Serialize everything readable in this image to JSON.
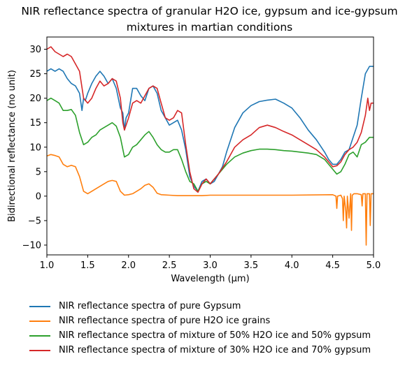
{
  "chart_data": {
    "type": "line",
    "title_line1": "NIR reflectance spectra of granular H2O ice, gypsum and ice-gypsum",
    "title_line2": "mixtures in martian conditions",
    "xlabel": "Wavelength (μm)",
    "ylabel": "Bidirectional reflectance (no unit)",
    "xlim": [
      1.0,
      5.0
    ],
    "ylim": [
      -12,
      32.5
    ],
    "xticks": [
      "1.0",
      "1.5",
      "2.0",
      "2.5",
      "3.0",
      "3.5",
      "4.0",
      "4.5",
      "5.0"
    ],
    "yticks": [
      "−10",
      "−5",
      "0",
      "5",
      "10",
      "15",
      "20",
      "25",
      "30"
    ],
    "grid": false,
    "legend_position": "below",
    "series": [
      {
        "name": "NIR reflectance spectra of pure Gypsum",
        "color": "#1f77b4",
        "x": [
          1.0,
          1.05,
          1.1,
          1.15,
          1.2,
          1.25,
          1.3,
          1.35,
          1.4,
          1.43,
          1.45,
          1.47,
          1.5,
          1.55,
          1.6,
          1.65,
          1.7,
          1.75,
          1.8,
          1.85,
          1.9,
          1.93,
          1.95,
          1.97,
          2.0,
          2.05,
          2.1,
          2.15,
          2.2,
          2.25,
          2.3,
          2.35,
          2.4,
          2.45,
          2.5,
          2.55,
          2.6,
          2.65,
          2.7,
          2.75,
          2.8,
          2.85,
          2.9,
          2.95,
          3.0,
          3.05,
          3.1,
          3.15,
          3.2,
          3.3,
          3.4,
          3.5,
          3.6,
          3.7,
          3.8,
          3.9,
          4.0,
          4.1,
          4.2,
          4.3,
          4.4,
          4.45,
          4.5,
          4.55,
          4.6,
          4.65,
          4.7,
          4.75,
          4.8,
          4.85,
          4.9,
          4.95,
          5.0
        ],
        "values": [
          25.5,
          26.0,
          25.5,
          26.0,
          25.5,
          24.0,
          23.0,
          22.5,
          21.0,
          17.5,
          20.0,
          19.5,
          21.0,
          23.0,
          24.5,
          25.5,
          24.5,
          23.0,
          24.0,
          22.0,
          18.0,
          17.0,
          13.5,
          16.0,
          17.0,
          22.0,
          22.0,
          20.5,
          19.5,
          22.0,
          22.5,
          21.0,
          17.5,
          16.0,
          14.5,
          15.0,
          15.5,
          13.5,
          9.5,
          4.0,
          2.0,
          1.0,
          3.0,
          3.5,
          2.5,
          3.0,
          4.5,
          6.0,
          9.0,
          14.0,
          17.0,
          18.5,
          19.3,
          19.6,
          19.8,
          19.0,
          18.0,
          16.0,
          13.5,
          11.5,
          9.0,
          7.5,
          6.5,
          6.5,
          7.5,
          9.0,
          9.5,
          12.0,
          14.5,
          20.0,
          25.0,
          26.5,
          26.5
        ]
      },
      {
        "name": "NIR reflectance spectra of pure H2O ice grains",
        "color": "#ff7f0e",
        "x": [
          1.0,
          1.05,
          1.1,
          1.15,
          1.2,
          1.25,
          1.3,
          1.35,
          1.4,
          1.45,
          1.5,
          1.55,
          1.6,
          1.65,
          1.7,
          1.75,
          1.8,
          1.85,
          1.9,
          1.95,
          2.0,
          2.05,
          2.1,
          2.15,
          2.2,
          2.25,
          2.3,
          2.35,
          2.4,
          2.5,
          2.6,
          2.7,
          2.8,
          2.9,
          3.0,
          3.5,
          4.0,
          4.5,
          4.54,
          4.55,
          4.56,
          4.6,
          4.62,
          4.63,
          4.64,
          4.66,
          4.67,
          4.68,
          4.7,
          4.72,
          4.73,
          4.74,
          4.76,
          4.8,
          4.85,
          4.86,
          4.87,
          4.9,
          4.91,
          4.92,
          4.93,
          4.95,
          4.96,
          4.97,
          5.0
        ],
        "values": [
          8.2,
          8.5,
          8.3,
          8.0,
          6.5,
          6.0,
          6.3,
          6.0,
          4.0,
          1.0,
          0.5,
          1.0,
          1.5,
          2.0,
          2.5,
          3.0,
          3.2,
          3.0,
          1.0,
          0.2,
          0.3,
          0.5,
          1.0,
          1.5,
          2.2,
          2.5,
          1.8,
          0.6,
          0.3,
          0.2,
          0.1,
          0.1,
          0.1,
          0.1,
          0.2,
          0.2,
          0.2,
          0.3,
          0.0,
          -2.5,
          0.0,
          0.2,
          -0.5,
          -5.0,
          0.0,
          -3.0,
          -6.5,
          0.0,
          -4.5,
          0.5,
          -7.0,
          0.2,
          0.5,
          0.5,
          0.3,
          -2.0,
          0.5,
          0.5,
          -10.0,
          0.5,
          0.5,
          0.5,
          -6.0,
          0.5,
          0.5
        ]
      },
      {
        "name": "NIR reflectance spectra of mixture of 50% H2O ice and 50% gypsum",
        "color": "#2ca02c",
        "x": [
          1.0,
          1.05,
          1.1,
          1.15,
          1.2,
          1.25,
          1.3,
          1.35,
          1.4,
          1.45,
          1.5,
          1.55,
          1.6,
          1.65,
          1.7,
          1.75,
          1.8,
          1.85,
          1.9,
          1.95,
          2.0,
          2.05,
          2.1,
          2.15,
          2.2,
          2.25,
          2.3,
          2.35,
          2.4,
          2.45,
          2.5,
          2.55,
          2.6,
          2.65,
          2.7,
          2.75,
          2.8,
          2.85,
          2.9,
          2.95,
          3.0,
          3.1,
          3.2,
          3.3,
          3.4,
          3.5,
          3.6,
          3.7,
          3.8,
          3.9,
          4.0,
          4.1,
          4.2,
          4.3,
          4.4,
          4.5,
          4.55,
          4.6,
          4.65,
          4.7,
          4.75,
          4.8,
          4.85,
          4.9,
          4.95,
          5.0
        ],
        "values": [
          19.5,
          20.0,
          19.5,
          19.0,
          17.5,
          17.5,
          17.7,
          16.5,
          13.0,
          10.5,
          11.0,
          12.0,
          12.5,
          13.5,
          14.0,
          14.5,
          15.0,
          14.3,
          12.0,
          8.0,
          8.5,
          10.0,
          10.5,
          11.5,
          12.5,
          13.2,
          12.0,
          10.5,
          9.5,
          9.0,
          9.0,
          9.5,
          9.5,
          7.5,
          5.0,
          3.0,
          2.5,
          1.0,
          2.5,
          3.0,
          2.5,
          4.5,
          6.5,
          8.0,
          8.8,
          9.3,
          9.6,
          9.6,
          9.5,
          9.3,
          9.2,
          9.0,
          8.8,
          8.5,
          7.5,
          5.5,
          4.5,
          5.0,
          6.5,
          8.5,
          9.0,
          8.0,
          10.5,
          11.0,
          12.0,
          12.0
        ]
      },
      {
        "name": "NIR reflectance spectra of mixture of 30% H2O ice and 70% gypsum",
        "color": "#d62728",
        "x": [
          1.0,
          1.05,
          1.1,
          1.15,
          1.2,
          1.25,
          1.3,
          1.35,
          1.4,
          1.45,
          1.5,
          1.55,
          1.6,
          1.65,
          1.7,
          1.75,
          1.8,
          1.85,
          1.9,
          1.93,
          1.95,
          2.0,
          2.05,
          2.1,
          2.15,
          2.2,
          2.25,
          2.3,
          2.35,
          2.4,
          2.45,
          2.5,
          2.55,
          2.6,
          2.65,
          2.7,
          2.75,
          2.8,
          2.85,
          2.9,
          2.95,
          3.0,
          3.1,
          3.2,
          3.3,
          3.4,
          3.5,
          3.6,
          3.7,
          3.8,
          3.9,
          4.0,
          4.1,
          4.2,
          4.3,
          4.4,
          4.45,
          4.5,
          4.55,
          4.6,
          4.65,
          4.7,
          4.75,
          4.8,
          4.85,
          4.9,
          4.93,
          4.95,
          4.97,
          5.0
        ],
        "values": [
          30.0,
          30.5,
          29.5,
          29.0,
          28.5,
          29.0,
          28.5,
          27.0,
          25.5,
          20.0,
          19.0,
          20.0,
          22.0,
          23.5,
          22.5,
          23.0,
          24.0,
          23.5,
          20.0,
          15.0,
          13.5,
          16.0,
          19.0,
          19.5,
          19.0,
          20.5,
          22.0,
          22.5,
          22.0,
          19.0,
          16.0,
          15.5,
          16.0,
          17.5,
          17.0,
          10.5,
          5.0,
          1.5,
          0.8,
          2.5,
          3.5,
          2.5,
          4.5,
          7.0,
          10.0,
          11.5,
          12.5,
          14.0,
          14.5,
          14.0,
          13.2,
          12.5,
          11.5,
          10.5,
          9.5,
          8.0,
          7.0,
          6.0,
          6.2,
          7.0,
          8.5,
          9.5,
          10.0,
          11.0,
          13.0,
          16.5,
          20.0,
          17.5,
          19.0,
          19.0
        ]
      }
    ]
  }
}
